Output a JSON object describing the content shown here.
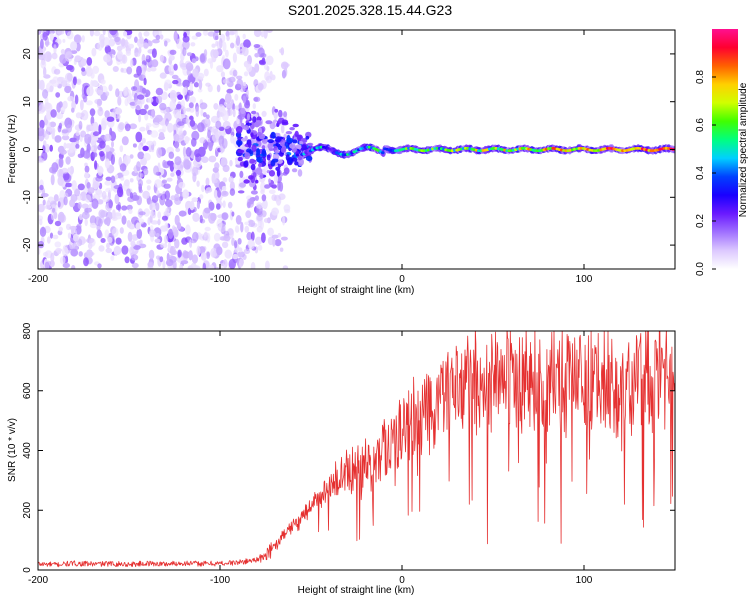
{
  "title": "S201.2025.328.15.44.G23",
  "chart_data": [
    {
      "type": "heatmap",
      "xlabel": "Height of straight line (km)",
      "ylabel": "Frequency (Hz)",
      "xlim": [
        -200,
        150
      ],
      "ylim": [
        -25,
        25
      ],
      "xticks": [
        -200,
        -100,
        0,
        100
      ],
      "yticks": [
        -20,
        -10,
        0,
        10,
        20
      ],
      "colorbar": {
        "label": "Normalized spectral amplitude",
        "range": [
          0.0,
          1.0
        ],
        "ticks": [
          0.0,
          0.2,
          0.4,
          0.6,
          0.8
        ],
        "tick_labels": [
          "0.0",
          "0.2",
          "0.4",
          "0.6",
          "0.8"
        ],
        "colormap": [
          "#ffffff",
          "#dcc8ff",
          "#a070ff",
          "#6a1aff",
          "#1a00ff",
          "#0040ff",
          "#00d0ff",
          "#00ff80",
          "#40ff00",
          "#d0ff00",
          "#ffd000",
          "#ff6000",
          "#ff0030",
          "#ff1090"
        ]
      },
      "features": {
        "noise_region_x": [
          -200,
          -75
        ],
        "transition_x": [
          -90,
          -50
        ],
        "carrier_line_freq_hz": 0,
        "carrier_line_x": [
          -55,
          150
        ],
        "carrier_peak_amplitude": 0.95
      }
    },
    {
      "type": "line",
      "xlabel": "Height of straight line (km)",
      "ylabel": "SNR (10 * v/v)",
      "xlim": [
        -200,
        150
      ],
      "ylim": [
        0,
        800
      ],
      "xticks": [
        -200,
        -100,
        0,
        100
      ],
      "yticks": [
        0,
        200,
        400,
        600,
        800
      ],
      "color": "#e53030",
      "series": [
        {
          "name": "SNR",
          "x": [
            -200,
            -190,
            -180,
            -170,
            -160,
            -150,
            -140,
            -130,
            -120,
            -110,
            -100,
            -90,
            -80,
            -75,
            -70,
            -65,
            -60,
            -55,
            -50,
            -45,
            -40,
            -35,
            -30,
            -25,
            -20,
            -15,
            -10,
            -5,
            0,
            5,
            10,
            15,
            20,
            25,
            30,
            35,
            40,
            45,
            50,
            60,
            70,
            80,
            90,
            100,
            110,
            120,
            130,
            140,
            150
          ],
          "values": [
            20,
            18,
            22,
            20,
            21,
            19,
            22,
            20,
            23,
            21,
            22,
            25,
            35,
            50,
            80,
            110,
            150,
            180,
            210,
            240,
            270,
            300,
            320,
            345,
            360,
            390,
            410,
            440,
            460,
            490,
            510,
            540,
            560,
            580,
            590,
            610,
            640,
            630,
            650,
            640,
            650,
            630,
            640,
            640,
            640,
            620,
            650,
            660,
            650
          ]
        }
      ]
    }
  ]
}
